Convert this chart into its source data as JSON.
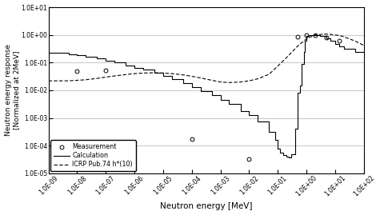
{
  "title": "",
  "xlabel": "Neutron energy [MeV]",
  "ylabel": "Neutron energy response\n[Normalized at 2MeV]",
  "xlim_log": [
    -9,
    2
  ],
  "ylim_log": [
    -5,
    1
  ],
  "measurement_x": [
    1e-08,
    1e-07,
    0.0001,
    0.01,
    0.5,
    1.0,
    2.0,
    5.0,
    14.0
  ],
  "measurement_y": [
    0.048,
    0.052,
    0.00017,
    3.2e-05,
    0.85,
    1.0,
    1.0,
    0.82,
    0.6
  ],
  "calc_x": [
    1e-09,
    2e-09,
    5e-09,
    1e-08,
    2e-08,
    5e-08,
    1e-07,
    2e-07,
    5e-07,
    1e-06,
    2e-06,
    5e-06,
    1e-05,
    2e-05,
    5e-05,
    0.0001,
    0.0002,
    0.0005,
    0.001,
    0.002,
    0.005,
    0.01,
    0.02,
    0.05,
    0.08,
    0.1,
    0.12,
    0.15,
    0.2,
    0.25,
    0.3,
    0.4,
    0.5,
    0.6,
    0.7,
    0.8,
    0.9,
    1.0,
    1.2,
    1.5,
    2.0,
    3.0,
    5.0,
    7.0,
    10.0,
    14.0,
    20.0,
    50.0,
    100.0
  ],
  "calc_y": [
    0.23,
    0.22,
    0.2,
    0.185,
    0.165,
    0.14,
    0.115,
    0.1,
    0.08,
    0.065,
    0.055,
    0.042,
    0.033,
    0.026,
    0.018,
    0.013,
    0.0095,
    0.0065,
    0.0045,
    0.0032,
    0.0018,
    0.00125,
    0.00075,
    0.00032,
    0.00016,
    8e-05,
    5.5e-05,
    4.5e-05,
    4e-05,
    3.8e-05,
    5e-05,
    0.0004,
    0.008,
    0.015,
    0.09,
    0.25,
    0.6,
    0.93,
    0.99,
    1.0,
    1.0,
    0.92,
    0.75,
    0.6,
    0.48,
    0.38,
    0.32,
    0.25,
    0.22
  ],
  "icrp_x": [
    1e-09,
    5e-09,
    1e-08,
    2e-08,
    5e-08,
    1e-07,
    2e-07,
    5e-07,
    1e-06,
    2e-06,
    5e-06,
    1e-05,
    2e-05,
    5e-05,
    0.0001,
    0.0002,
    0.0005,
    0.001,
    0.002,
    0.005,
    0.01,
    0.02,
    0.05,
    0.1,
    0.2,
    0.5,
    1.0,
    2.0,
    5.0,
    10.0,
    14.0,
    20.0,
    50.0,
    100.0
  ],
  "icrp_y": [
    0.022,
    0.022,
    0.023,
    0.024,
    0.027,
    0.03,
    0.033,
    0.037,
    0.04,
    0.042,
    0.043,
    0.042,
    0.04,
    0.036,
    0.032,
    0.028,
    0.023,
    0.02,
    0.019,
    0.02,
    0.022,
    0.026,
    0.038,
    0.075,
    0.15,
    0.4,
    0.72,
    1.0,
    1.08,
    1.0,
    0.95,
    0.87,
    0.6,
    0.42
  ],
  "legend_labels": [
    "Measurement",
    "Calculation",
    "ICRP Pub.74 h*(10)"
  ],
  "bg_color": "#ffffff",
  "grid_color": "#b0b0b0",
  "line_color": "#000000"
}
